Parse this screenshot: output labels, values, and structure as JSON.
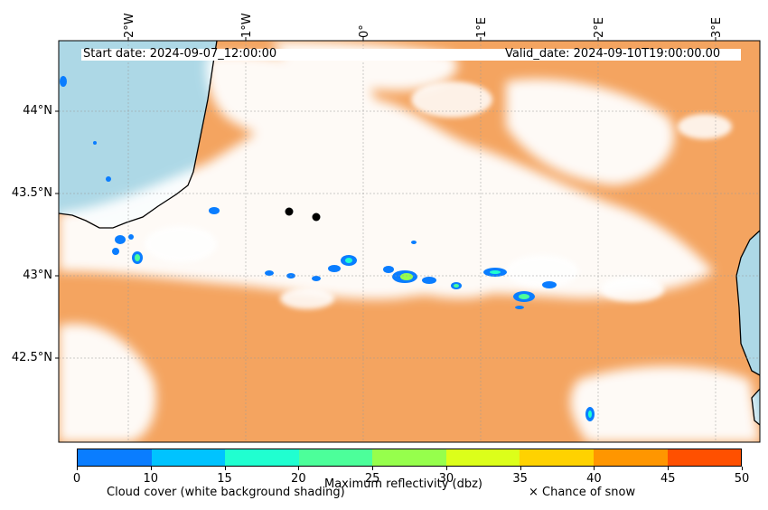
{
  "header": {
    "start_date": "Start date: 2024-09-07_12:00:00",
    "valid_date": "Valid_date: 2024-09-10T19:00:00.00"
  },
  "axes": {
    "lon_labels": [
      "2°W",
      "1°W",
      "0°",
      "1°E",
      "2°E",
      "3°E"
    ],
    "lat_labels": [
      "44°N",
      "43.5°N",
      "43°N",
      "42.5°N"
    ]
  },
  "colorbar": {
    "title": "Maximum reflectivity (dbz)",
    "ticks": [
      "0",
      "10",
      "15",
      "20",
      "25",
      "30",
      "35",
      "40",
      "45",
      "50"
    ],
    "colors": [
      "#0a7dff",
      "#00c3ff",
      "#20ffd0",
      "#4cff9a",
      "#96ff4c",
      "#dcff1a",
      "#ffd200",
      "#ff9600",
      "#ff5000"
    ]
  },
  "legend": {
    "cloud_cover": "Cloud cover (white background shading)",
    "snow": "× Chance of snow"
  },
  "map": {
    "land_color": "#f4a460",
    "sea_color": "#add8e6",
    "markers": 2
  }
}
